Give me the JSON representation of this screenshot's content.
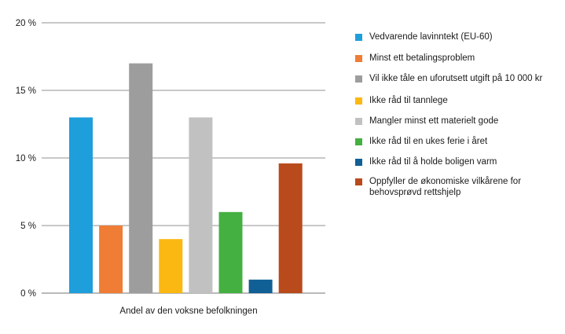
{
  "chart_data": {
    "type": "bar",
    "xlabel": "Andel av den voksne befolkningen",
    "ylabel": "",
    "ylim": [
      0,
      20
    ],
    "yticks": [
      0,
      5,
      10,
      15,
      20
    ],
    "ytick_labels": [
      "0 %",
      "5 %",
      "10 %",
      "15 %",
      "20 %"
    ],
    "grid": "horizontal",
    "legend_position": "right",
    "series": [
      {
        "name": "Vedvarende lavinntekt (EU-60)",
        "value": 13,
        "color": "#1e9fdb"
      },
      {
        "name": "Minst ett betalingsproblem",
        "value": 5,
        "color": "#ef7d36"
      },
      {
        "name": "Vil ikke tåle en uforutsett utgift på 10 000 kr",
        "value": 17,
        "color": "#9d9d9d"
      },
      {
        "name": "Ikke råd til tannlege",
        "value": 4,
        "color": "#fbb813"
      },
      {
        "name": "Mangler minst ett materielt gode",
        "value": 13,
        "color": "#c1c1c1"
      },
      {
        "name": "Ikke råd til en ukes ferie i året",
        "value": 6,
        "color": "#44b041"
      },
      {
        "name": "Ikke råd til å holde boligen varm",
        "value": 1,
        "color": "#105f95"
      },
      {
        "name": "Oppfyller de økonomiske vilkårene for behovsprøvd rettshjelp",
        "value": 9.6,
        "color": "#b94a1c"
      }
    ]
  }
}
